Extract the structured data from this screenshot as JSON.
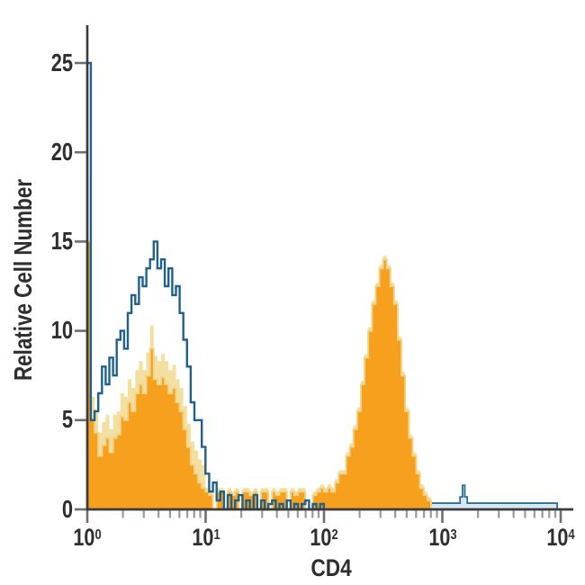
{
  "figure": {
    "background": "#FFFFFF",
    "axis_color": "#3B3B3B",
    "tick_color_major": "#6E6E6E",
    "tick_color_minor": "#9A9A9A",
    "text_color": "#2E2E2E"
  },
  "chart_data": {
    "type": "bar",
    "subtype": "flow-cytometry-histogram-overlay",
    "title": "",
    "xlabel": "CD4",
    "ylabel": "Relative Cell Number",
    "x_scale": "log10",
    "x_decade_range": [
      0,
      4
    ],
    "ylim": [
      0,
      27
    ],
    "grid": false,
    "legend": "none",
    "bins_per_decade": 32,
    "y_ticks": [
      {
        "label": "25",
        "value": 25
      },
      {
        "label": "20",
        "value": 20
      },
      {
        "label": "15",
        "value": 15
      },
      {
        "label": "10",
        "value": 10
      },
      {
        "label": "5",
        "value": 5
      },
      {
        "label": "0",
        "value": 0
      }
    ],
    "x_ticks": [
      {
        "base": "10",
        "exp": "0",
        "decade": 0
      },
      {
        "base": "10",
        "exp": "1",
        "decade": 1
      },
      {
        "base": "10",
        "exp": "2",
        "decade": 2
      },
      {
        "base": "10",
        "exp": "3",
        "decade": 3
      },
      {
        "base": "10",
        "exp": "4",
        "decade": 4
      }
    ],
    "series": [
      {
        "name": "stained-sample-filled",
        "style": "filled",
        "fill": "#F6A01E",
        "halo_fill": "#F3DFA0",
        "edge": "#EFD58C",
        "edge_spike_value": 15,
        "start_decade": 0.03,
        "left_cluster_bins": 31,
        "halo_offset_left": 1.3,
        "halo_offset_rest": 0.2,
        "values": [
          5,
          4.3,
          3,
          3.6,
          4,
          3.2,
          4,
          4.2,
          5.2,
          5,
          6,
          5.5,
          6.5,
          7,
          6.5,
          7.5,
          9,
          7.3,
          7,
          7.4,
          7,
          6.5,
          6.8,
          6,
          5.5,
          4.5,
          3.5,
          2.5,
          2,
          1.5,
          1.2,
          1,
          0.8,
          0,
          1,
          1,
          0,
          1,
          0.8,
          1,
          0,
          1,
          1,
          0.8,
          1,
          0,
          1,
          1,
          0,
          1,
          0.8,
          1,
          1,
          0,
          1,
          0.8,
          1,
          1,
          0,
          0,
          0.8,
          1,
          1.2,
          1,
          1.2,
          1,
          1.5,
          2,
          2,
          3,
          3.5,
          4.5,
          5.5,
          7,
          8.5,
          10,
          11.5,
          12.5,
          13.5,
          14,
          13.5,
          12.5,
          11.5,
          9.5,
          7.5,
          5.5,
          4,
          3,
          2,
          1.2,
          0.8,
          0.5,
          0,
          0,
          0
        ]
      },
      {
        "name": "control-open-outline",
        "style": "open",
        "stroke": "#20618C",
        "edge_spike_value": 25,
        "start_decade": 0.03,
        "values": [
          5,
          5.5,
          6.5,
          8,
          7,
          8.5,
          7.5,
          9.5,
          10,
          9,
          11,
          12,
          11.5,
          13,
          12.5,
          13.5,
          14,
          15,
          13.5,
          14,
          12.5,
          13.5,
          12,
          12.5,
          11,
          9.5,
          8,
          6,
          5,
          5,
          3.5,
          2,
          1,
          1.5,
          0.5,
          1,
          0,
          0.8,
          0,
          0.5,
          0.8,
          0,
          0.5,
          0,
          0.8,
          0,
          0.5,
          0,
          0.3,
          0.5,
          0,
          0.3,
          0,
          0.5,
          0,
          0.3,
          0,
          0.3,
          0.5,
          0,
          0.3,
          0,
          0.3
        ]
      },
      {
        "name": "baseline-band",
        "style": "low-band",
        "fill": "#D7E8F3",
        "stroke": "#2E6E96",
        "from_decade": 1.94,
        "to_decade": 3.97,
        "height": 0.35,
        "spike": {
          "decade": 3.18,
          "base_height": 0.7,
          "peak_height": 1.35
        }
      }
    ]
  }
}
